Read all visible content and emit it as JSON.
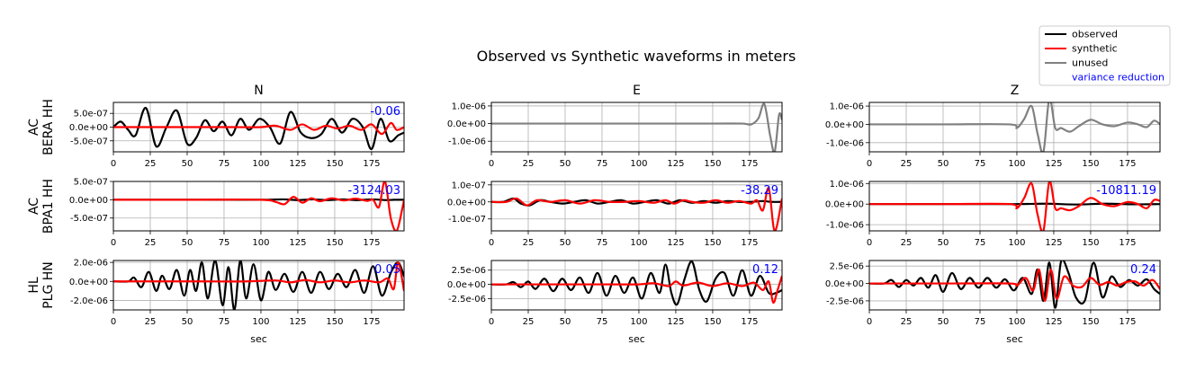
{
  "chart_data": {
    "type": "line",
    "title": "Observed vs Synthetic waveforms in meters",
    "legend": {
      "placement": "top-right",
      "entries": [
        {
          "label": "observed",
          "color": "#000000"
        },
        {
          "label": "synthetic",
          "color": "#ff0000"
        },
        {
          "label": "unused",
          "color": "#808080"
        },
        {
          "label": "variance reduction",
          "color": "#0000ff"
        }
      ]
    },
    "columns": [
      "N",
      "E",
      "Z"
    ],
    "stations": [
      {
        "network": "AC",
        "station": "BERA HH"
      },
      {
        "network": "AC",
        "station": "BPA1 HH"
      },
      {
        "network": "HL",
        "station": "PLG HN"
      }
    ],
    "xlabel": "sec",
    "xlim": [
      0,
      197
    ],
    "xticks": [
      0,
      25,
      50,
      75,
      100,
      125,
      150,
      175
    ],
    "grid": true,
    "panels": [
      {
        "row": 0,
        "col": 0,
        "ylim": [
          -9e-07,
          9e-07
        ],
        "yticks": [
          5e-07,
          0,
          -5e-07
        ],
        "ytick_labels": [
          "5.0e-07",
          "0.0e+00",
          "-5.0e-07"
        ],
        "vr": "-0.06",
        "observed": {
          "t": [
            0,
            5,
            10,
            15,
            22,
            29,
            36,
            43,
            50,
            56,
            62,
            68,
            74,
            80,
            86,
            92,
            99,
            106,
            113,
            120,
            127,
            134,
            141,
            148,
            155,
            162,
            169,
            175,
            181,
            187,
            193,
            197
          ],
          "v": [
            0,
            2e-07,
            -1e-07,
            -3e-07,
            7e-07,
            -7e-07,
            0,
            6e-07,
            -6e-07,
            -4e-07,
            2.5e-07,
            -1.5e-07,
            2e-07,
            -3e-07,
            3e-07,
            -1e-07,
            3e-07,
            0,
            -6e-07,
            5.5e-07,
            -2e-07,
            -4e-07,
            -2.5e-07,
            3e-07,
            -2e-07,
            3e-07,
            0,
            -8e-07,
            3e-07,
            -5e-07,
            -3e-07,
            -2e-07
          ]
        },
        "synthetic": {
          "t": [
            0,
            20,
            40,
            60,
            80,
            100,
            110,
            120,
            128,
            136,
            144,
            152,
            160,
            168,
            175,
            182,
            188,
            192,
            197
          ],
          "v": [
            0,
            0,
            0,
            0,
            0,
            0,
            5e-08,
            -1e-07,
            1e-07,
            -1e-07,
            5e-08,
            -5e-08,
            5e-08,
            -1e-07,
            1e-07,
            -2.5e-07,
            1.5e-07,
            -1e-07,
            0
          ]
        },
        "unused": {
          "t": [],
          "v": []
        }
      },
      {
        "row": 0,
        "col": 1,
        "ylim": [
          -1.6e-06,
          1.2e-06
        ],
        "yticks": [
          1e-06,
          0,
          -1e-06
        ],
        "ytick_labels": [
          "1.0e-06",
          "0.0e+00",
          "-1.0e-06"
        ],
        "vr": "",
        "observed": {
          "t": [],
          "v": []
        },
        "synthetic": {
          "t": [],
          "v": []
        },
        "unused": {
          "t": [
            0,
            50,
            100,
            150,
            170,
            176,
            181,
            185,
            189,
            192,
            195,
            197
          ],
          "v": [
            0,
            0,
            0,
            0,
            0,
            -5e-08,
            3e-07,
            1.1e-06,
            -7e-07,
            -1.6e-06,
            5e-07,
            2e-07
          ]
        }
      },
      {
        "row": 0,
        "col": 2,
        "ylim": [
          -1.5e-06,
          1.2e-06
        ],
        "yticks": [
          1e-06,
          0,
          -1e-06
        ],
        "ytick_labels": [
          "1.0e-06",
          "0.0e+00",
          "-1.0e-06"
        ],
        "vr": "",
        "observed": {
          "t": [],
          "v": []
        },
        "synthetic": {
          "t": [],
          "v": []
        },
        "unused": {
          "t": [
            0,
            50,
            95,
            100,
            105,
            110,
            114,
            118,
            122,
            126,
            130,
            136,
            142,
            150,
            158,
            166,
            175,
            182,
            188,
            193,
            197
          ],
          "v": [
            0,
            0,
            0,
            -2e-07,
            3e-07,
            1e-06,
            -5e-07,
            -1.5e-06,
            1.4e-06,
            -2e-07,
            -2e-07,
            -4e-07,
            -1e-07,
            2.5e-07,
            0,
            -1e-07,
            1e-07,
            0,
            -1.5e-07,
            2e-07,
            0
          ]
        }
      },
      {
        "row": 1,
        "col": 0,
        "ylim": [
          -8.5e-07,
          5e-07
        ],
        "yticks": [
          5e-07,
          0,
          -5e-07
        ],
        "ytick_labels": [
          "5.0e-07",
          "0.0e+00",
          "-5.0e-07"
        ],
        "vr": "-3124.03",
        "observed": {
          "t": [
            0,
            60,
            100,
            115,
            125,
            135,
            145,
            155,
            165,
            175,
            185,
            190,
            197
          ],
          "v": [
            0,
            0,
            0,
            1e-08,
            -1e-08,
            1e-08,
            -1e-08,
            1e-08,
            -1e-08,
            1e-08,
            -1e-08,
            0,
            0
          ]
        },
        "synthetic": {
          "t": [
            0,
            50,
            100,
            110,
            116,
            122,
            128,
            134,
            140,
            148,
            156,
            164,
            172,
            176,
            180,
            184,
            188,
            192,
            196,
            197
          ],
          "v": [
            0,
            0,
            0,
            -6e-08,
            -1.2e-07,
            8e-08,
            -8e-08,
            4e-08,
            -4e-08,
            4e-08,
            -2e-08,
            3e-08,
            -3e-08,
            0,
            -2e-07,
            5e-07,
            -5e-07,
            -8.5e-07,
            -2e-07,
            0
          ]
        },
        "unused": {
          "t": [],
          "v": []
        }
      },
      {
        "row": 1,
        "col": 1,
        "ylim": [
          -1.7e-07,
          1.2e-07
        ],
        "yticks": [
          1e-07,
          0,
          -1e-07
        ],
        "ytick_labels": [
          "1.0e-07",
          "0.0e+00",
          "-1.0e-07"
        ],
        "vr": "-38.29",
        "observed": {
          "t": [
            0,
            8,
            15,
            20,
            26,
            33,
            40,
            48,
            56,
            64,
            72,
            80,
            88,
            96,
            104,
            112,
            120,
            128,
            136,
            144,
            152,
            160,
            168,
            176,
            184,
            190,
            197
          ],
          "v": [
            0,
            0,
            2e-08,
            -1e-08,
            -2e-08,
            1e-08,
            0,
            -1e-08,
            0,
            1e-08,
            -1e-08,
            0,
            1e-08,
            -1e-08,
            0,
            1e-08,
            -1e-08,
            1e-08,
            -5e-09,
            5e-09,
            -5e-09,
            5e-09,
            0,
            0,
            5e-09,
            0,
            0
          ]
        },
        "synthetic": {
          "t": [
            0,
            10,
            17,
            24,
            31,
            40,
            50,
            60,
            70,
            80,
            90,
            100,
            110,
            118,
            124,
            130,
            136,
            144,
            152,
            160,
            168,
            176,
            180,
            184,
            188,
            192,
            197
          ],
          "v": [
            0,
            0,
            2e-08,
            -2e-08,
            1e-08,
            0,
            1e-08,
            -1e-08,
            1e-08,
            0,
            0,
            5e-09,
            -5e-09,
            1e-08,
            -1e-08,
            1e-08,
            0,
            -5e-09,
            1e-08,
            -5e-09,
            5e-09,
            -1e-08,
            1e-08,
            -5e-08,
            8e-08,
            -1.7e-07,
            2e-08
          ]
        },
        "unused": {
          "t": [],
          "v": []
        }
      },
      {
        "row": 1,
        "col": 2,
        "ylim": [
          -1.3e-06,
          1.1e-06
        ],
        "yticks": [
          1e-06,
          0,
          -1e-06
        ],
        "ytick_labels": [
          "1.0e-06",
          "0.0e+00",
          "-1.0e-06"
        ],
        "vr": "-10811.19",
        "observed": {
          "t": [
            0,
            60,
            100,
            120,
            140,
            160,
            180,
            197
          ],
          "v": [
            0,
            0,
            0,
            2e-08,
            -2e-08,
            2e-08,
            -1e-08,
            0
          ]
        },
        "synthetic": {
          "t": [
            0,
            50,
            95,
            100,
            105,
            110,
            114,
            118,
            122,
            126,
            130,
            136,
            142,
            150,
            158,
            166,
            175,
            182,
            188,
            193,
            197
          ],
          "v": [
            0,
            0,
            0,
            -2e-07,
            3e-07,
            1e-06,
            -5e-07,
            -1.3e-06,
            1.1e-06,
            -2e-07,
            -2e-07,
            -3e-07,
            -1e-07,
            3e-07,
            0,
            -1e-07,
            1e-07,
            0,
            -2e-07,
            2e-07,
            1.5e-07
          ]
        },
        "unused": {
          "t": [],
          "v": []
        }
      },
      {
        "row": 2,
        "col": 0,
        "ylim": [
          -3e-06,
          2.2e-06
        ],
        "yticks": [
          2e-06,
          0,
          -2e-06
        ],
        "ytick_labels": [
          "2.0e-06",
          "0.0e+00",
          "-2.0e-06"
        ],
        "vr": "0.05",
        "observed": {
          "t": [
            0,
            10,
            14,
            19,
            24,
            29,
            33,
            38,
            43,
            48,
            52,
            56,
            60,
            64,
            69,
            74,
            78,
            82,
            86,
            90,
            95,
            100,
            105,
            110,
            116,
            122,
            128,
            134,
            140,
            146,
            152,
            158,
            164,
            170,
            176,
            182,
            188,
            193,
            197
          ],
          "v": [
            0,
            0,
            4e-07,
            -6e-07,
            1e-06,
            -1e-06,
            6e-07,
            -8e-07,
            1.2e-06,
            -1.5e-06,
            1.2e-06,
            -1e-06,
            2e-06,
            -1.8e-06,
            2.2e-06,
            -2.5e-06,
            1.5e-06,
            -3e-06,
            2.2e-06,
            -1.8e-06,
            1.8e-06,
            -2e-06,
            1e-06,
            -9e-07,
            8e-07,
            -1.1e-06,
            1e-06,
            -1.2e-06,
            1e-06,
            -8e-07,
            8e-07,
            -6e-07,
            1.2e-06,
            -1.2e-06,
            1.6e-06,
            -1.5e-06,
            9e-07,
            2e-06,
            5e-07
          ]
        },
        "synthetic": {
          "t": [
            0,
            30,
            60,
            90,
            110,
            120,
            130,
            140,
            150,
            160,
            170,
            180,
            186,
            190,
            193,
            197
          ],
          "v": [
            0,
            0,
            0,
            0,
            1e-07,
            -1e-07,
            1.5e-07,
            -1e-07,
            1e-07,
            -1e-07,
            1e-07,
            -1e-07,
            3e-07,
            -8e-07,
            2e-06,
            -1e-06
          ]
        },
        "unused": {
          "t": [],
          "v": []
        }
      },
      {
        "row": 2,
        "col": 1,
        "ylim": [
          -4.5e-06,
          4.2e-06
        ],
        "yticks": [
          2.5e-06,
          0,
          -2.5e-06
        ],
        "ytick_labels": [
          "2.5e-06",
          "0.0e+00",
          "-2.5e-06"
        ],
        "vr": "0.12",
        "observed": {
          "t": [
            0,
            10,
            15,
            20,
            25,
            30,
            36,
            42,
            48,
            54,
            60,
            66,
            72,
            78,
            84,
            90,
            96,
            102,
            108,
            114,
            118,
            122,
            126,
            131,
            136,
            141,
            146,
            152,
            158,
            164,
            170,
            176,
            182,
            188,
            193,
            197
          ],
          "v": [
            0,
            0,
            4e-07,
            -5e-07,
            5e-07,
            -8e-07,
            1e-06,
            -1.2e-06,
            1e-06,
            -1e-06,
            1.2e-06,
            -1.5e-06,
            2e-06,
            -2e-06,
            1.5e-06,
            -1.5e-06,
            1.2e-06,
            -2.5e-06,
            2e-06,
            -1.5e-06,
            3.5e-06,
            -1.5e-06,
            -3.5e-06,
            1e-06,
            4e-06,
            -1e-06,
            -3e-06,
            1e-06,
            2e-06,
            -2e-06,
            2.5e-06,
            -2e-06,
            1.5e-06,
            -1.5e-06,
            -1.5e-06,
            -1e-06
          ]
        },
        "synthetic": {
          "t": [
            0,
            20,
            40,
            60,
            80,
            100,
            110,
            120,
            125,
            130,
            140,
            150,
            160,
            170,
            178,
            184,
            188,
            191,
            194,
            197
          ],
          "v": [
            0,
            0,
            0,
            0,
            0,
            0,
            2e-07,
            -3e-07,
            5e-07,
            -2e-07,
            3e-07,
            -3e-07,
            2e-07,
            -3e-07,
            3e-07,
            -1e-06,
            5e-07,
            -3.2e-06,
            -1e-06,
            1.5e-06
          ]
        },
        "unused": {
          "t": [],
          "v": []
        }
      },
      {
        "row": 2,
        "col": 2,
        "ylim": [
          -3.8e-06,
          3.3e-06
        ],
        "yticks": [
          2.5e-06,
          0,
          -2.5e-06
        ],
        "ytick_labels": [
          "2.5e-06",
          "0.0e+00",
          "-2.5e-06"
        ],
        "vr": "0.24",
        "observed": {
          "t": [
            0,
            10,
            15,
            20,
            25,
            30,
            35,
            40,
            45,
            50,
            56,
            62,
            68,
            74,
            80,
            86,
            92,
            98,
            104,
            110,
            114,
            118,
            122,
            126,
            130,
            135,
            140,
            146,
            152,
            158,
            164,
            170,
            176,
            182,
            188,
            193,
            197
          ],
          "v": [
            0,
            0,
            5e-07,
            -5e-07,
            5e-07,
            -3e-07,
            8e-07,
            -6e-07,
            1.2e-06,
            -1.2e-06,
            1.5e-06,
            -8e-07,
            8e-07,
            -6e-07,
            8e-07,
            -6e-07,
            6e-07,
            -1e-06,
            8e-07,
            -1.5e-06,
            2e-06,
            -2.5e-06,
            3e-06,
            -3.5e-06,
            3.2e-06,
            1.5e-06,
            -2e-06,
            -2.5e-06,
            3e-06,
            -2e-06,
            1e-06,
            -5e-07,
            5e-07,
            -3e-07,
            6e-07,
            -8e-07,
            -1.5e-06
          ]
        },
        "synthetic": {
          "t": [
            0,
            50,
            95,
            100,
            106,
            111,
            115,
            119,
            123,
            127,
            132,
            138,
            144,
            150,
            156,
            162,
            168,
            174,
            180,
            186,
            192,
            197
          ],
          "v": [
            0,
            0,
            0,
            -3e-07,
            8e-07,
            -1e-06,
            2e-06,
            -2.5e-06,
            2e-06,
            -2.2e-06,
            1e-06,
            -3e-07,
            -5e-07,
            8e-07,
            -2e-07,
            2e-07,
            -3e-07,
            2e-07,
            3e-07,
            -3e-07,
            5e-07,
            -8e-07
          ]
        },
        "unused": {
          "t": [],
          "v": []
        }
      }
    ]
  }
}
